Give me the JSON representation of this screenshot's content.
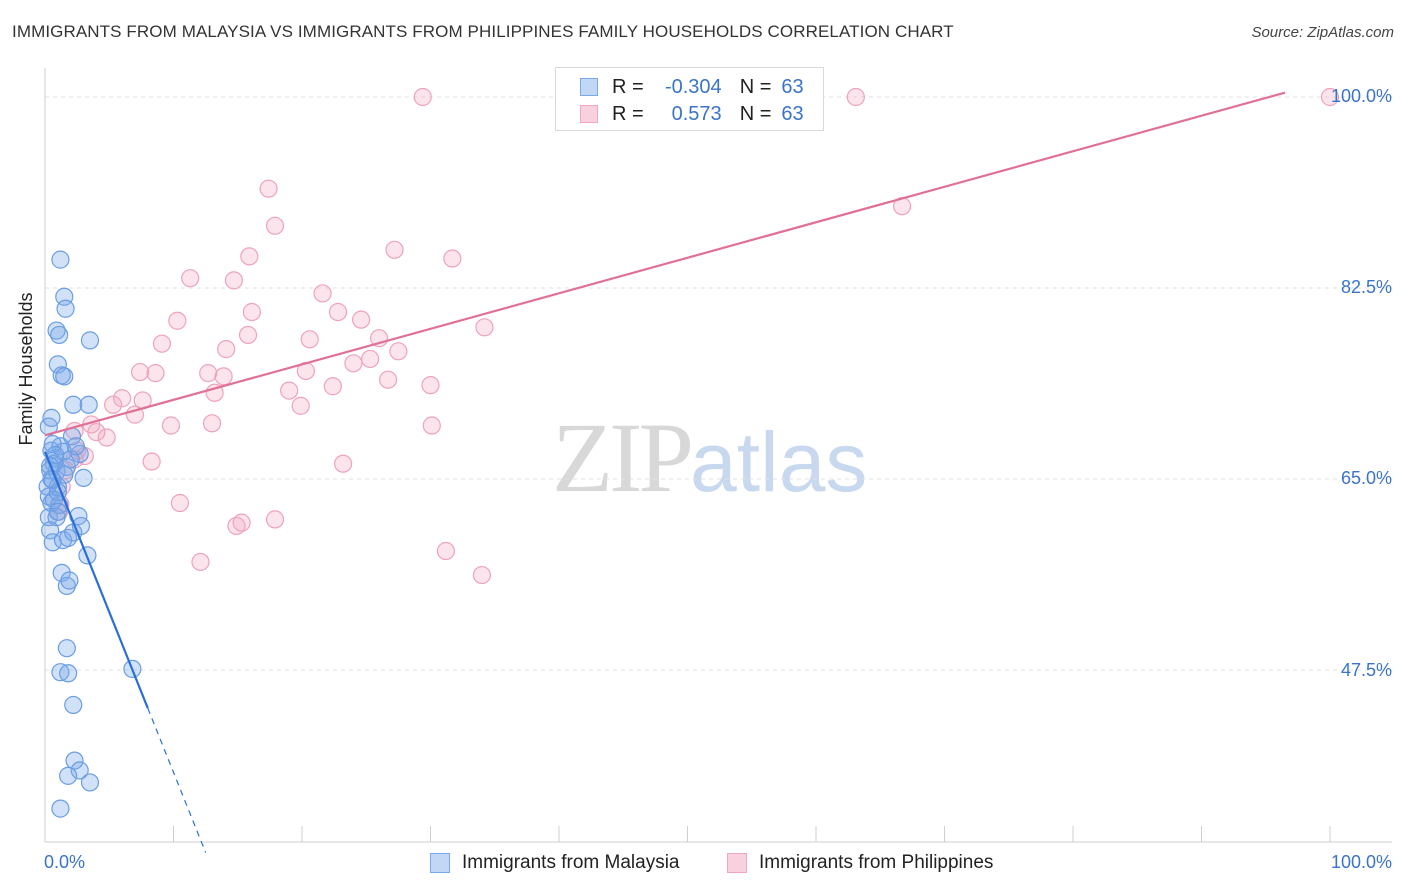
{
  "title": "IMMIGRANTS FROM MALAYSIA VS IMMIGRANTS FROM PHILIPPINES FAMILY HOUSEHOLDS CORRELATION CHART",
  "source": "Source: ZipAtlas.com",
  "watermark": {
    "zip": "ZIP",
    "atlas": "atlas"
  },
  "colors": {
    "malaysia": "#7aa9e8",
    "malaysia_line": "#2a6fd6",
    "philippines": "#f2a7bf",
    "philippines_line": "#e07096",
    "label": "#3a74c9"
  },
  "legend": {
    "rows": [
      {
        "r_label": "R =",
        "r_value": "-0.304",
        "n_label": "N =",
        "n_value": "63"
      },
      {
        "r_label": "R =",
        "r_value": "0.573",
        "n_label": "N =",
        "n_value": "63"
      }
    ]
  },
  "bottom_legend": {
    "malaysia": "Immigrants from Malaysia",
    "philippines": "Immigrants from Philippines"
  },
  "chart_data": {
    "type": "scatter",
    "title": "IMMIGRANTS FROM MALAYSIA VS IMMIGRANTS FROM PHILIPPINES FAMILY HOUSEHOLDS CORRELATION CHART",
    "xlabel": "",
    "ylabel": "Family Households",
    "xlim": [
      0,
      100
    ],
    "ylim": [
      30,
      102
    ],
    "x_tick_labels": [
      "0.0%",
      "100.0%"
    ],
    "y_ticks": [
      47.5,
      65.0,
      82.5,
      100.0
    ],
    "y_tick_labels": [
      "47.5%",
      "65.0%",
      "82.5%",
      "100.0%"
    ],
    "series": [
      {
        "name": "Immigrants from Malaysia",
        "r": -0.304,
        "n": 63,
        "trend": {
          "x0": 0,
          "y0": 67.5,
          "x1": 8.0,
          "y1": 44.0,
          "dash_x1": 12.5
        },
        "points": [
          [
            0.3,
            69.8
          ],
          [
            0.5,
            67.6
          ],
          [
            0.8,
            66.9
          ],
          [
            1.2,
            68.0
          ],
          [
            0.4,
            65.8
          ],
          [
            0.9,
            65.7
          ],
          [
            0.7,
            66.4
          ],
          [
            0.2,
            64.3
          ],
          [
            0.6,
            64.9
          ],
          [
            1.0,
            64.3
          ],
          [
            0.3,
            63.4
          ],
          [
            0.5,
            62.8
          ],
          [
            1.1,
            62.6
          ],
          [
            0.3,
            61.5
          ],
          [
            0.9,
            61.5
          ],
          [
            0.4,
            60.3
          ],
          [
            0.6,
            59.2
          ],
          [
            1.4,
            59.4
          ],
          [
            1.8,
            59.6
          ],
          [
            2.2,
            60.1
          ],
          [
            2.6,
            61.6
          ],
          [
            2.8,
            60.7
          ],
          [
            3.0,
            65.1
          ],
          [
            3.3,
            58.0
          ],
          [
            1.3,
            56.4
          ],
          [
            1.7,
            55.2
          ],
          [
            1.9,
            55.7
          ],
          [
            1.2,
            85.1
          ],
          [
            1.5,
            81.7
          ],
          [
            1.6,
            80.6
          ],
          [
            0.9,
            78.6
          ],
          [
            1.1,
            78.2
          ],
          [
            3.5,
            77.7
          ],
          [
            1.0,
            75.5
          ],
          [
            1.3,
            74.5
          ],
          [
            1.5,
            74.4
          ],
          [
            2.2,
            71.8
          ],
          [
            3.4,
            71.8
          ],
          [
            0.5,
            70.6
          ],
          [
            2.1,
            68.9
          ],
          [
            2.7,
            67.3
          ],
          [
            1.7,
            66.1
          ],
          [
            1.7,
            49.5
          ],
          [
            1.2,
            47.3
          ],
          [
            1.8,
            47.2
          ],
          [
            6.8,
            47.6
          ],
          [
            2.2,
            44.3
          ],
          [
            2.3,
            39.2
          ],
          [
            2.7,
            38.3
          ],
          [
            1.8,
            37.8
          ],
          [
            3.5,
            37.2
          ],
          [
            1.2,
            34.8
          ],
          [
            0.7,
            63.1
          ],
          [
            1.4,
            67.5
          ],
          [
            2.0,
            66.8
          ],
          [
            0.6,
            68.2
          ],
          [
            1.0,
            62.0
          ],
          [
            0.8,
            67.2
          ],
          [
            1.5,
            65.4
          ],
          [
            2.4,
            68.0
          ],
          [
            0.4,
            66.2
          ],
          [
            1.0,
            63.8
          ],
          [
            0.5,
            65.0
          ]
        ]
      },
      {
        "name": "Immigrants from Philippines",
        "r": 0.573,
        "n": 63,
        "trend": {
          "x0": 0,
          "y0": 69.0,
          "x1": 96.5,
          "y1": 100.4
        },
        "points": [
          [
            29.4,
            100.0
          ],
          [
            63.1,
            100.0
          ],
          [
            100.0,
            100.0
          ],
          [
            66.7,
            90.0
          ],
          [
            17.4,
            91.6
          ],
          [
            17.9,
            88.2
          ],
          [
            27.2,
            86.0
          ],
          [
            15.9,
            85.4
          ],
          [
            31.7,
            85.2
          ],
          [
            11.3,
            83.4
          ],
          [
            14.7,
            83.2
          ],
          [
            21.6,
            82.0
          ],
          [
            16.1,
            80.3
          ],
          [
            22.8,
            80.3
          ],
          [
            10.3,
            79.5
          ],
          [
            24.6,
            79.6
          ],
          [
            34.2,
            78.9
          ],
          [
            15.8,
            78.2
          ],
          [
            26.0,
            77.9
          ],
          [
            20.6,
            77.8
          ],
          [
            9.1,
            77.4
          ],
          [
            14.1,
            76.9
          ],
          [
            27.5,
            76.7
          ],
          [
            25.3,
            76.0
          ],
          [
            24.0,
            75.6
          ],
          [
            20.3,
            74.9
          ],
          [
            7.4,
            74.8
          ],
          [
            8.6,
            74.7
          ],
          [
            12.7,
            74.7
          ],
          [
            13.9,
            74.4
          ],
          [
            26.7,
            74.1
          ],
          [
            30.0,
            73.6
          ],
          [
            22.4,
            73.5
          ],
          [
            13.2,
            72.9
          ],
          [
            19.0,
            73.1
          ],
          [
            6.0,
            72.4
          ],
          [
            7.6,
            72.2
          ],
          [
            5.3,
            71.8
          ],
          [
            19.9,
            71.7
          ],
          [
            7.0,
            70.9
          ],
          [
            13.0,
            70.1
          ],
          [
            9.8,
            69.9
          ],
          [
            30.1,
            69.9
          ],
          [
            3.6,
            70.0
          ],
          [
            4.0,
            69.3
          ],
          [
            4.8,
            68.8
          ],
          [
            2.3,
            69.4
          ],
          [
            2.5,
            67.6
          ],
          [
            3.1,
            67.1
          ],
          [
            2.3,
            66.8
          ],
          [
            8.3,
            66.6
          ],
          [
            23.2,
            66.4
          ],
          [
            1.6,
            65.8
          ],
          [
            1.3,
            64.3
          ],
          [
            1.2,
            62.7
          ],
          [
            1.1,
            62.0
          ],
          [
            15.3,
            61.0
          ],
          [
            14.9,
            60.7
          ],
          [
            12.1,
            57.4
          ],
          [
            31.2,
            58.4
          ],
          [
            34.0,
            56.2
          ],
          [
            10.5,
            62.8
          ],
          [
            17.9,
            61.3
          ]
        ]
      }
    ]
  }
}
